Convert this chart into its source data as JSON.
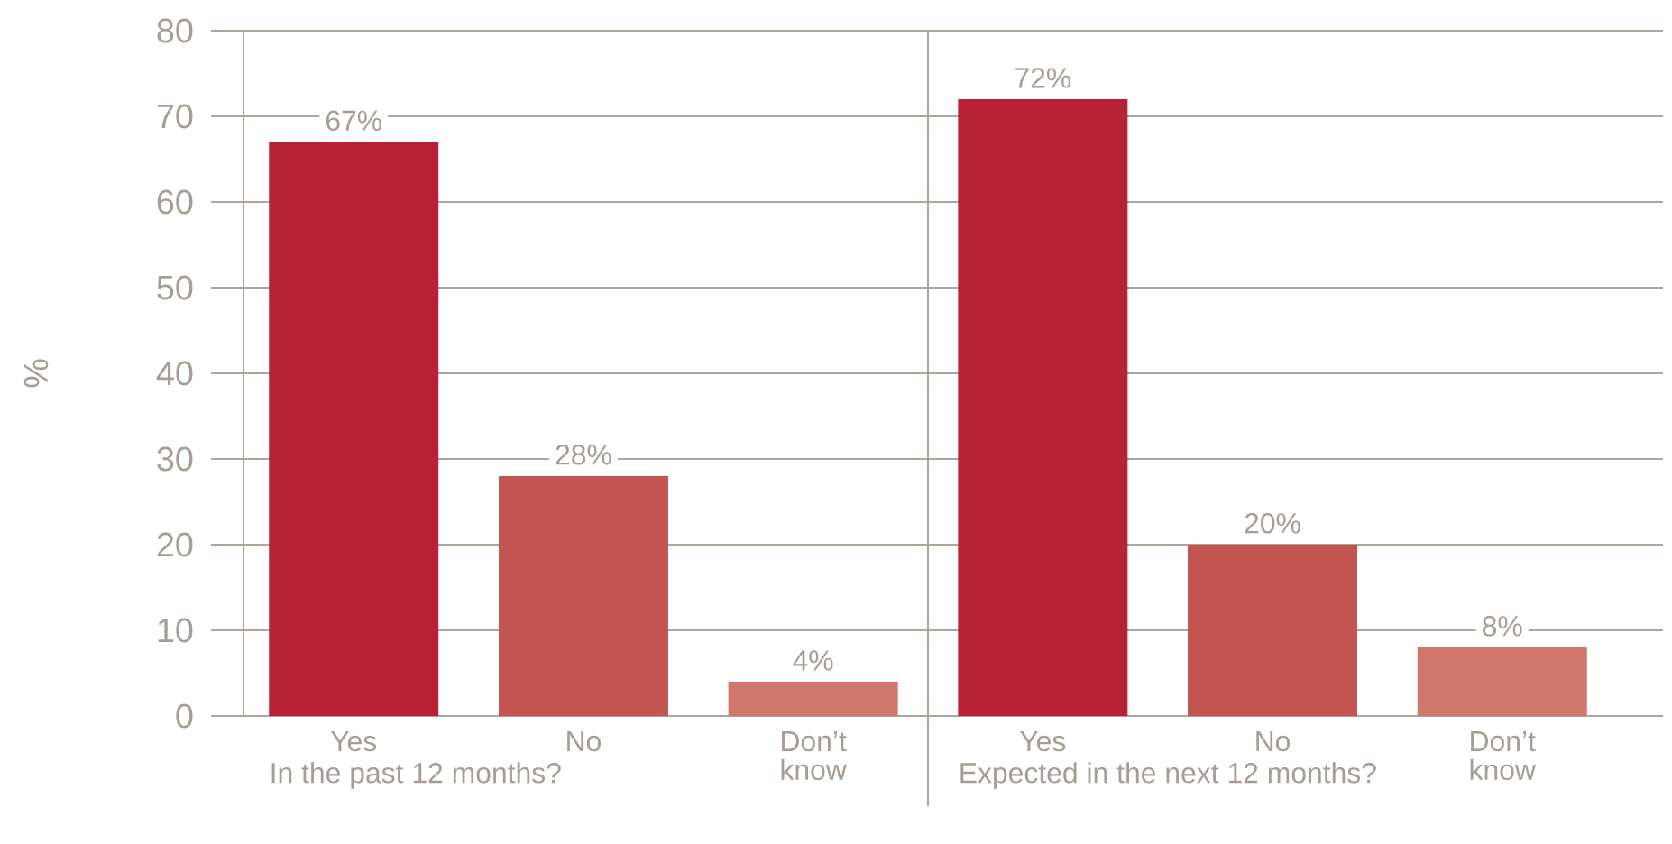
{
  "chart_data": {
    "type": "bar",
    "ylabel": "%",
    "categories": [
      "Yes",
      "No",
      "Don’t know",
      "Yes",
      "No",
      "Don’t know"
    ],
    "values": [
      67,
      28,
      4,
      72,
      20,
      8
    ],
    "value_labels": [
      "67%",
      "28%",
      "4%",
      "72%",
      "20%",
      "8%"
    ],
    "colors": [
      "#b82035",
      "#c3544f",
      "#d0786b",
      "#b82035",
      "#c3544f",
      "#d0786b"
    ],
    "ylim": [
      0,
      80
    ],
    "yticks": [
      0,
      10,
      20,
      30,
      40,
      50,
      60,
      70,
      80
    ],
    "grid": "y",
    "annotations": [
      "In the past 12 months?",
      "Expected in the next 12 months?"
    ]
  }
}
